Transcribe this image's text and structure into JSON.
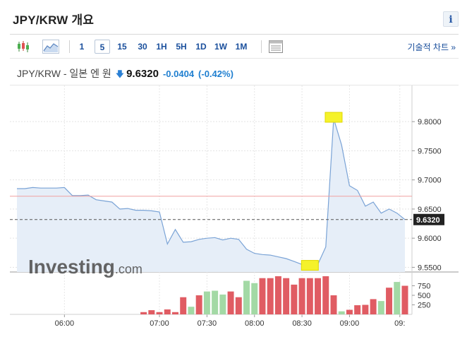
{
  "title": "JPY/KRW 개요",
  "info_label": "i",
  "toolbar": {
    "intervals": [
      {
        "label": "1",
        "active": false
      },
      {
        "label": "5",
        "active": true
      },
      {
        "label": "15",
        "active": false
      },
      {
        "label": "30",
        "active": false
      },
      {
        "label": "1H",
        "active": false
      },
      {
        "label": "5H",
        "active": false
      },
      {
        "label": "1D",
        "active": false
      },
      {
        "label": "1W",
        "active": false
      },
      {
        "label": "1M",
        "active": false
      }
    ],
    "technical_chart_label": "기술적 차트 »"
  },
  "quote": {
    "name": "JPY/KRW - 일본 엔 원",
    "arrow": "🡇",
    "price": "9.6320",
    "change": "-0.0404",
    "change_pct": "(-0.42%)"
  },
  "chart_data": {
    "type": "line",
    "watermark": "Investing.com",
    "x_ticks": [
      "06:00",
      "07:00",
      "07:30",
      "08:00",
      "08:30",
      "09:00",
      "09:"
    ],
    "y_ticks": [
      9.8,
      9.75,
      9.7,
      9.65,
      9.6,
      9.55
    ],
    "y_tick_labels": [
      "9.8000",
      "9.7500",
      "9.7000",
      "9.6500",
      "9.6000",
      "9.5500"
    ],
    "ylim": [
      9.542,
      9.862
    ],
    "current_price": 9.632,
    "current_price_label": "9.6320",
    "previous_close": 9.672,
    "series": [
      {
        "values": [
          9.685,
          9.685,
          9.687,
          9.686,
          9.686,
          9.686,
          9.687,
          9.673,
          9.673,
          9.674,
          9.666,
          9.664,
          9.662,
          9.65,
          9.651,
          9.648,
          9.648,
          9.647,
          9.645,
          9.59,
          9.615,
          9.593,
          9.594,
          9.598,
          9.6,
          9.601,
          9.597,
          9.6,
          9.598,
          9.581,
          9.574,
          9.572,
          9.571,
          9.568,
          9.565,
          9.56,
          9.555,
          9.551,
          9.555,
          9.585,
          9.805,
          9.76,
          9.69,
          9.682,
          9.655,
          9.662,
          9.643,
          9.65,
          9.643,
          9.632
        ]
      }
    ],
    "highlight_markers": [
      {
        "index": 40,
        "value": 9.805
      },
      {
        "index": 37,
        "value": 9.551
      }
    ],
    "volume": {
      "y_tick_labels": [
        "750",
        "500",
        "250"
      ],
      "y_ticks": [
        750,
        500,
        250
      ],
      "ylim": [
        0,
        1000
      ],
      "values": [
        0,
        0,
        0,
        0,
        0,
        0,
        0,
        0,
        0,
        0,
        0,
        0,
        0,
        0,
        0,
        0,
        60,
        110,
        60,
        130,
        60,
        450,
        200,
        500,
        600,
        620,
        520,
        600,
        450,
        880,
        820,
        950,
        950,
        1000,
        950,
        780,
        950,
        950,
        950,
        1000,
        500,
        80,
        120,
        240,
        250,
        400,
        350,
        700,
        850,
        750
      ],
      "up": [
        false,
        false,
        false,
        false,
        false,
        false,
        false,
        false,
        false,
        false,
        false,
        false,
        false,
        false,
        false,
        false,
        false,
        false,
        false,
        false,
        false,
        false,
        true,
        false,
        true,
        true,
        true,
        false,
        false,
        true,
        true,
        false,
        false,
        false,
        false,
        false,
        false,
        false,
        false,
        false,
        false,
        true,
        false,
        false,
        false,
        false,
        true,
        false,
        true,
        false
      ]
    }
  }
}
